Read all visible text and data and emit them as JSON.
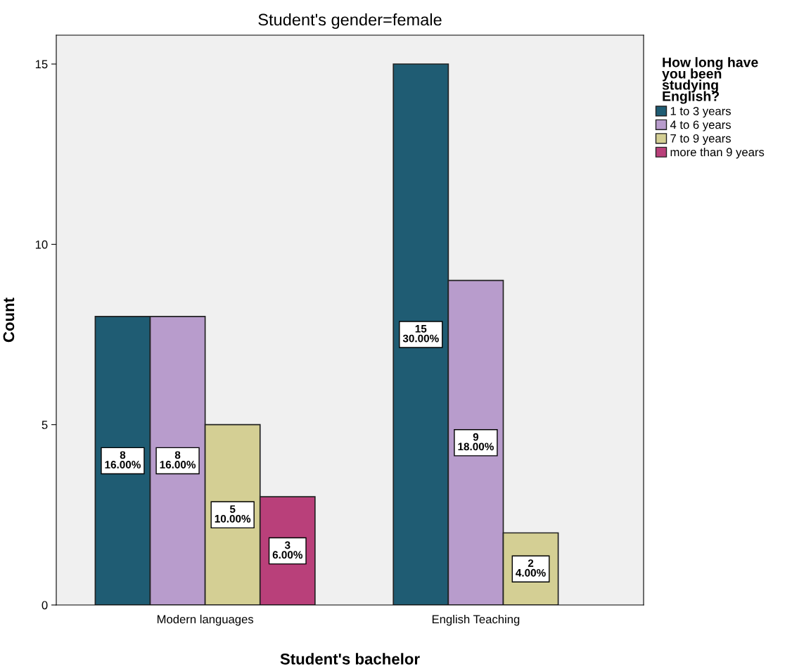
{
  "chart_data": {
    "type": "bar",
    "title": "Student's gender=female",
    "xlabel": "Student's bachelor",
    "ylabel": "Count",
    "legend_title": "How long have\nyou been\nstudying\nEnglish?",
    "categories": [
      "Modern languages",
      "English Teaching"
    ],
    "series": [
      {
        "name": "1 to 3 years",
        "color": "#1f5c73",
        "values": [
          8,
          15
        ],
        "value_labels": [
          "8\n16.00%",
          "15\n30.00%"
        ]
      },
      {
        "name": "4 to 6 years",
        "color": "#b89ccc",
        "values": [
          8,
          9
        ],
        "value_labels": [
          "8\n16.00%",
          "9\n18.00%"
        ]
      },
      {
        "name": "7 to 9 years",
        "color": "#d4cf94",
        "values": [
          5,
          2
        ],
        "value_labels": [
          "5\n10.00%",
          "2\n4.00%"
        ]
      },
      {
        "name": "more than 9 years",
        "color": "#b9407a",
        "values": [
          3,
          null
        ],
        "value_labels": [
          "3\n6.00%",
          null
        ]
      }
    ],
    "ylim": [
      0,
      15.8
    ],
    "yticks": [
      0,
      5,
      10,
      15
    ],
    "grid": false,
    "legend": "right"
  }
}
